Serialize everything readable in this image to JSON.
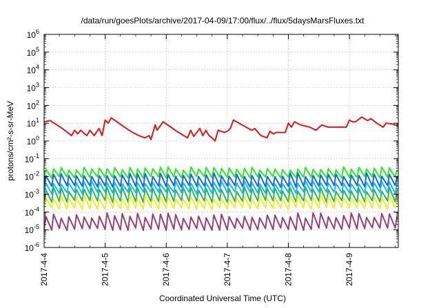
{
  "chart_data": {
    "type": "line",
    "title": "/data/run/goesPlots/archive/2017-04-09/17:00/flux/../flux/5daysMarsFluxes.txt",
    "xlabel": "Coordinated Universal Time (UTC)",
    "ylabel": "protons/cm²-s-sr-MeV",
    "y_scale": "log",
    "ylim": [
      1e-06,
      1000000.0
    ],
    "xlim": [
      0,
      5.8
    ],
    "x_unit": "days since 2017-4-4",
    "y_ticks": [
      {
        "base": "10",
        "exp": "-6",
        "value": 1e-06
      },
      {
        "base": "10",
        "exp": "-5",
        "value": 1e-05
      },
      {
        "base": "10",
        "exp": "-4",
        "value": 0.0001
      },
      {
        "base": "10",
        "exp": "-3",
        "value": 0.001
      },
      {
        "base": "10",
        "exp": "-2",
        "value": 0.01
      },
      {
        "base": "10",
        "exp": "-1",
        "value": 0.1
      },
      {
        "base": "10",
        "exp": "0",
        "value": 1
      },
      {
        "base": "10",
        "exp": "1",
        "value": 10
      },
      {
        "base": "10",
        "exp": "2",
        "value": 100
      },
      {
        "base": "10",
        "exp": "3",
        "value": 1000
      },
      {
        "base": "10",
        "exp": "4",
        "value": 10000
      },
      {
        "base": "10",
        "exp": "5",
        "value": 100000
      },
      {
        "base": "10",
        "exp": "6",
        "value": 1000000
      }
    ],
    "x_ticks": [
      {
        "label": "2017-4-4",
        "value": 0
      },
      {
        "label": "2017-4-5",
        "value": 1
      },
      {
        "label": "2017-4-6",
        "value": 2
      },
      {
        "label": "2017-4-7",
        "value": 3
      },
      {
        "label": "2017-4-8",
        "value": 4
      },
      {
        "label": "2017-4-9",
        "value": 5
      }
    ],
    "grid": true,
    "legend": "none",
    "series": [
      {
        "color": "#ee1111",
        "points": [
          [
            0,
            12
          ],
          [
            0.1,
            14
          ],
          [
            0.3,
            5
          ],
          [
            0.45,
            2
          ],
          [
            0.5,
            4
          ],
          [
            0.55,
            2.5
          ],
          [
            0.6,
            4
          ],
          [
            0.7,
            2
          ],
          [
            0.75,
            4
          ],
          [
            0.82,
            2
          ],
          [
            0.9,
            5
          ],
          [
            0.95,
            2
          ],
          [
            1.0,
            15
          ],
          [
            1.05,
            10
          ],
          [
            1.1,
            20
          ],
          [
            1.35,
            5
          ],
          [
            1.45,
            3
          ],
          [
            1.55,
            2
          ],
          [
            1.65,
            1.5
          ],
          [
            1.72,
            2
          ],
          [
            1.75,
            1.2
          ],
          [
            1.82,
            8
          ],
          [
            1.85,
            4
          ],
          [
            1.95,
            12
          ],
          [
            2.2,
            3
          ],
          [
            2.35,
            1.5
          ],
          [
            2.4,
            4
          ],
          [
            2.45,
            1.8
          ],
          [
            2.55,
            5
          ],
          [
            2.6,
            2
          ],
          [
            2.65,
            4
          ],
          [
            2.7,
            2
          ],
          [
            2.75,
            1.5
          ],
          [
            2.8,
            1
          ],
          [
            2.85,
            4
          ],
          [
            2.9,
            3.5
          ],
          [
            2.95,
            3
          ],
          [
            3.0,
            3.5
          ],
          [
            3.05,
            5
          ],
          [
            3.1,
            15
          ],
          [
            3.4,
            4
          ],
          [
            3.45,
            5
          ],
          [
            3.55,
            2
          ],
          [
            3.65,
            1.5
          ],
          [
            3.7,
            3.5
          ],
          [
            3.75,
            2.5
          ],
          [
            3.8,
            3
          ],
          [
            3.9,
            3
          ],
          [
            3.95,
            3
          ],
          [
            4.0,
            10
          ],
          [
            4.05,
            6
          ],
          [
            4.1,
            12
          ],
          [
            4.2,
            8
          ],
          [
            4.35,
            6
          ],
          [
            4.45,
            4
          ],
          [
            4.55,
            8
          ],
          [
            4.65,
            6
          ],
          [
            4.75,
            6
          ],
          [
            4.95,
            6
          ],
          [
            5.0,
            15
          ],
          [
            5.05,
            12
          ],
          [
            5.1,
            12
          ],
          [
            5.2,
            22
          ],
          [
            5.3,
            14
          ],
          [
            5.35,
            18
          ],
          [
            5.45,
            10
          ],
          [
            5.55,
            6
          ],
          [
            5.6,
            10
          ],
          [
            5.7,
            9
          ],
          [
            5.8,
            7
          ]
        ]
      },
      {
        "color": "#22ee22",
        "base": 0.009,
        "amp": 3.2,
        "noise": 0.23,
        "seed": 11
      },
      {
        "color": "#1166ee",
        "base": 0.0028,
        "amp": 4.5,
        "noise": 0.25,
        "seed": 23
      },
      {
        "color": "#11bbee",
        "base": 0.0012,
        "amp": 4.0,
        "noise": 0.25,
        "seed": 37
      },
      {
        "color": "#22b866",
        "base": 0.0004,
        "amp": 5.0,
        "noise": 0.3,
        "seed": 41
      },
      {
        "color": "#eeee22",
        "base": 0.00016,
        "amp": 4.5,
        "noise": 0.3,
        "seed": 53
      },
      {
        "color": "#a03a72",
        "base": 1.1e-05,
        "amp": 6.0,
        "noise": 0.35,
        "seed": 67
      }
    ]
  }
}
